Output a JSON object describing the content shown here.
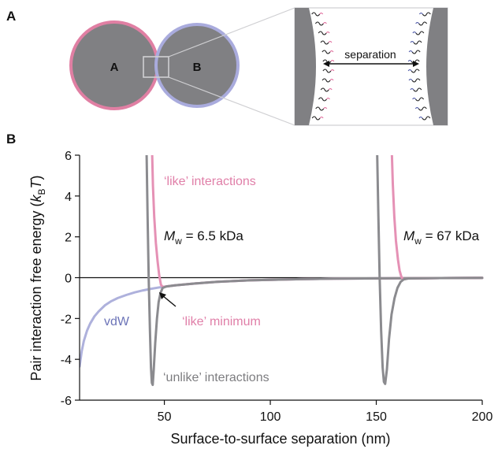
{
  "panel_a": {
    "label": "A",
    "particle_a_label": "A",
    "particle_b_label": "B",
    "separation_label": "separation",
    "colors": {
      "particle_fill": "#808083",
      "ring_a": "#e07fa3",
      "ring_b": "#a9abdd",
      "ligand_like": "#e06a9a",
      "ligand_unlike": "#4a56a6",
      "ligand_dark": "#222222"
    }
  },
  "panel_b": {
    "label": "B"
  },
  "chart_data": {
    "type": "line",
    "title": "",
    "xlabel": "Surface-to-surface separation (nm)",
    "ylabel_main": "Pair interaction free energy (",
    "ylabel_k": "k",
    "ylabel_sub": "B",
    "ylabel_T": "T",
    "ylabel_end": ")",
    "xlim": [
      10,
      200
    ],
    "ylim": [
      -6,
      6
    ],
    "xticks": [
      50,
      100,
      150,
      200
    ],
    "yticks": [
      -6,
      -4,
      -2,
      0,
      2,
      4,
      6
    ],
    "series": [
      {
        "key": "vdw",
        "color": "#aeb1dc",
        "points": [
          [
            10,
            -4.35
          ],
          [
            11,
            -3.6
          ],
          [
            12,
            -3.1
          ],
          [
            13.5,
            -2.6
          ],
          [
            15,
            -2.25
          ],
          [
            17,
            -1.9
          ],
          [
            19,
            -1.65
          ],
          [
            22,
            -1.35
          ],
          [
            25,
            -1.15
          ],
          [
            28,
            -1.0
          ],
          [
            32,
            -0.85
          ],
          [
            36,
            -0.72
          ],
          [
            40,
            -0.62
          ],
          [
            44,
            -0.54
          ],
          [
            48,
            -0.47
          ],
          [
            55,
            -0.38
          ],
          [
            65,
            -0.28
          ],
          [
            75,
            -0.2
          ],
          [
            90,
            -0.13
          ],
          [
            110,
            -0.08
          ],
          [
            130,
            -0.05
          ],
          [
            160,
            -0.03
          ],
          [
            200,
            -0.01
          ]
        ]
      },
      {
        "key": "like_short",
        "color": "#e591b5",
        "points": [
          [
            44.2,
            6.2
          ],
          [
            44.6,
            4.5
          ],
          [
            45.2,
            3.0
          ],
          [
            46.0,
            1.7
          ],
          [
            46.8,
            0.8
          ],
          [
            47.6,
            0.1
          ],
          [
            48.4,
            -0.35
          ],
          [
            49.2,
            -0.45
          ],
          [
            51,
            -0.43
          ],
          [
            55,
            -0.38
          ],
          [
            65,
            -0.28
          ],
          [
            75,
            -0.2
          ],
          [
            90,
            -0.13
          ],
          [
            110,
            -0.08
          ],
          [
            130,
            -0.05
          ],
          [
            160,
            -0.03
          ],
          [
            200,
            -0.01
          ]
        ]
      },
      {
        "key": "unlike_short",
        "color": "#8b8b8f",
        "points": [
          [
            41.6,
            6.2
          ],
          [
            42.1,
            3.0
          ],
          [
            42.6,
            0.0
          ],
          [
            43.2,
            -2.6
          ],
          [
            43.7,
            -4.4
          ],
          [
            44.1,
            -5.15
          ],
          [
            44.5,
            -5.25
          ],
          [
            45.0,
            -4.5
          ],
          [
            45.7,
            -3.2
          ],
          [
            46.5,
            -2.0
          ],
          [
            47.3,
            -1.2
          ],
          [
            48.2,
            -0.75
          ],
          [
            49.2,
            -0.5
          ],
          [
            51,
            -0.43
          ],
          [
            55,
            -0.38
          ],
          [
            65,
            -0.28
          ],
          [
            75,
            -0.2
          ],
          [
            90,
            -0.13
          ],
          [
            110,
            -0.08
          ],
          [
            130,
            -0.05
          ],
          [
            160,
            -0.03
          ],
          [
            200,
            -0.01
          ]
        ]
      },
      {
        "key": "like_long",
        "color": "#e591b5",
        "points": [
          [
            157.3,
            6.2
          ],
          [
            157.8,
            4.6
          ],
          [
            158.5,
            3.0
          ],
          [
            159.3,
            1.8
          ],
          [
            160.2,
            0.9
          ],
          [
            161.0,
            0.35
          ],
          [
            161.8,
            0.05
          ],
          [
            162.6,
            -0.08
          ],
          [
            165,
            -0.04
          ],
          [
            180,
            -0.02
          ],
          [
            200,
            -0.01
          ]
        ]
      },
      {
        "key": "unlike_long",
        "color": "#8b8b8f",
        "points": [
          [
            150.4,
            6.2
          ],
          [
            151.0,
            3.0
          ],
          [
            151.6,
            0.0
          ],
          [
            152.3,
            -2.6
          ],
          [
            153.0,
            -4.4
          ],
          [
            153.6,
            -5.1
          ],
          [
            154.2,
            -5.2
          ],
          [
            155.0,
            -4.5
          ],
          [
            156.0,
            -3.0
          ],
          [
            157.2,
            -1.8
          ],
          [
            158.6,
            -1.0
          ],
          [
            160.0,
            -0.5
          ],
          [
            161.5,
            -0.2
          ],
          [
            163,
            -0.08
          ],
          [
            165,
            -0.04
          ],
          [
            180,
            -0.02
          ],
          [
            200,
            -0.01
          ]
        ]
      }
    ],
    "annotations": {
      "like_interactions": "‘like’ interactions",
      "unlike_interactions": "‘unlike’ interactions",
      "like_minimum": "‘like’ minimum",
      "vdw": "vdW",
      "mw_symbol": "M",
      "mw_sub": "w",
      "mw_short": " = 6.5 kDa",
      "mw_long": " = 67 kDa"
    },
    "colors": {
      "like": "#e591b5",
      "unlike": "#8b8b8f",
      "vdw_text": "#6c74b8",
      "like_text": "#e07fa8",
      "unlike_text": "#7d7d80"
    }
  }
}
